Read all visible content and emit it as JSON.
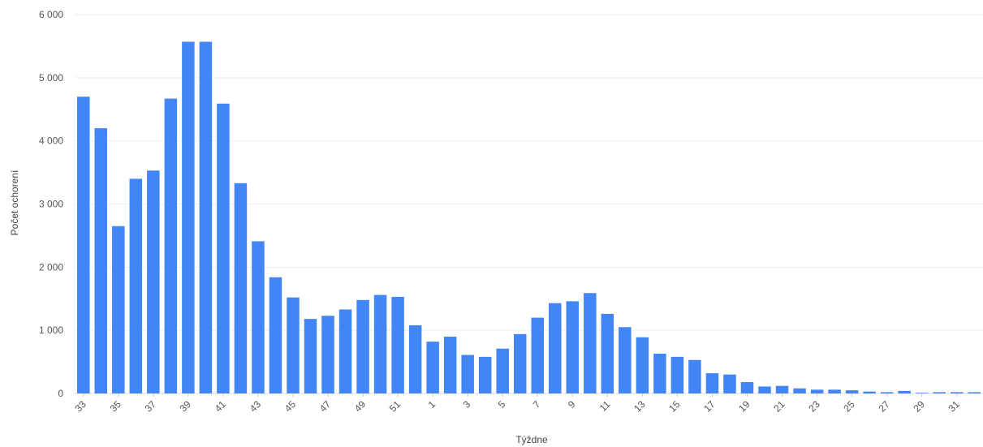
{
  "chart_data": {
    "type": "bar",
    "title": "",
    "xlabel": "Týždne",
    "ylabel": "Počet ochorení",
    "ylim": [
      0,
      6000
    ],
    "yticks": [
      0,
      1000,
      2000,
      3000,
      4000,
      5000,
      6000
    ],
    "ytick_labels": [
      "0",
      "1 000",
      "2 000",
      "3 000",
      "4 000",
      "5 000",
      "6 000"
    ],
    "grid": true,
    "bar_color": "#4285f4",
    "categories": [
      "33",
      "34",
      "35",
      "36",
      "37",
      "38",
      "39",
      "40",
      "41",
      "42",
      "43",
      "44",
      "45",
      "46",
      "47",
      "48",
      "49",
      "50",
      "51",
      "52",
      "1",
      "2",
      "3",
      "4",
      "5",
      "6",
      "7",
      "8",
      "9",
      "10",
      "11",
      "12",
      "13",
      "14",
      "15",
      "16",
      "17",
      "18",
      "19",
      "20",
      "21",
      "22",
      "23",
      "24",
      "25",
      "26",
      "27",
      "28",
      "29",
      "30",
      "31",
      "32"
    ],
    "xtick_labels": [
      "33",
      "35",
      "37",
      "39",
      "41",
      "43",
      "45",
      "47",
      "49",
      "51",
      "1",
      "3",
      "5",
      "7",
      "9",
      "11",
      "13",
      "15",
      "17",
      "19",
      "21",
      "23",
      "25",
      "27",
      "29",
      "31"
    ],
    "values": [
      4700,
      4200,
      2650,
      3400,
      3530,
      4670,
      5570,
      5570,
      4590,
      3330,
      2410,
      1840,
      1520,
      1180,
      1230,
      1330,
      1480,
      1560,
      1530,
      1080,
      820,
      900,
      610,
      580,
      710,
      940,
      1200,
      1430,
      1460,
      1590,
      1260,
      1050,
      890,
      630,
      580,
      530,
      320,
      300,
      180,
      110,
      120,
      80,
      60,
      60,
      50,
      30,
      20,
      40,
      10,
      20,
      20,
      20
    ]
  }
}
